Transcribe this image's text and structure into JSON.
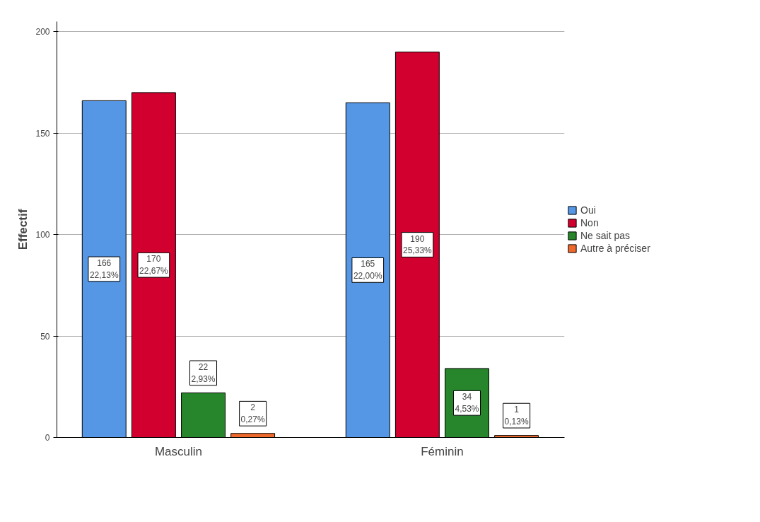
{
  "chart_data": {
    "type": "bar",
    "ylabel": "Effectif",
    "categories": [
      "Masculin",
      "Féminin"
    ],
    "series": [
      {
        "name": "Oui",
        "color": "#5597e4",
        "values": [
          166,
          165
        ],
        "value_labels": [
          "166\n22,13%",
          "165\n22,00%"
        ]
      },
      {
        "name": "Non",
        "color": "#d2002f",
        "values": [
          170,
          190
        ],
        "value_labels": [
          "170\n22,67%",
          "190\n25,33%"
        ]
      },
      {
        "name": "Ne sait pas",
        "color": "#27862b",
        "values": [
          22,
          34
        ],
        "value_labels": [
          "22\n2,93%",
          "34\n4,53%"
        ]
      },
      {
        "name": "Autre à préciser",
        "color": "#ee6a2c",
        "values": [
          2,
          1
        ],
        "value_labels": [
          "2\n0,27%",
          "1\n0,13%"
        ]
      }
    ],
    "ylim": [
      0,
      205
    ],
    "yticks": [
      0,
      50,
      100,
      150,
      200
    ],
    "grid": "y",
    "legend": "right"
  }
}
